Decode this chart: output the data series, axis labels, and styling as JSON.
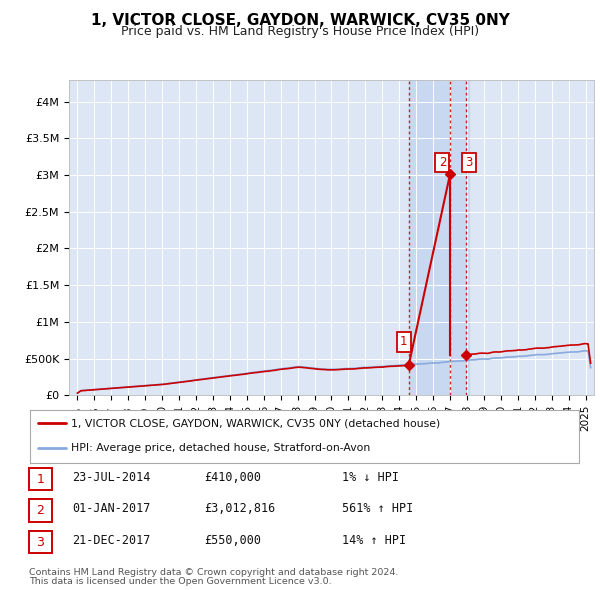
{
  "title": "1, VICTOR CLOSE, GAYDON, WARWICK, CV35 0NY",
  "subtitle": "Price paid vs. HM Land Registry's House Price Index (HPI)",
  "legend_line1": "1, VICTOR CLOSE, GAYDON, WARWICK, CV35 0NY (detached house)",
  "legend_line2": "HPI: Average price, detached house, Stratford-on-Avon",
  "footer1": "Contains HM Land Registry data © Crown copyright and database right 2024.",
  "footer2": "This data is licensed under the Open Government Licence v3.0.",
  "ylabel_ticks": [
    "£0",
    "£500K",
    "£1M",
    "£1.5M",
    "£2M",
    "£2.5M",
    "£3M",
    "£3.5M",
    "£4M"
  ],
  "ytick_vals": [
    0,
    500000,
    1000000,
    1500000,
    2000000,
    2500000,
    3000000,
    3500000,
    4000000
  ],
  "xlim": [
    1994.5,
    2025.5
  ],
  "ylim": [
    0,
    4300000
  ],
  "transactions": [
    {
      "num": 1,
      "date_label": "23-JUL-2014",
      "price_label": "£410,000",
      "pct_label": "1% ↓ HPI",
      "year": 2014.56,
      "price": 410000
    },
    {
      "num": 2,
      "date_label": "01-JAN-2017",
      "price_label": "£3,012,816",
      "pct_label": "561% ↑ HPI",
      "year": 2017.0,
      "price": 3012816
    },
    {
      "num": 3,
      "date_label": "21-DEC-2017",
      "price_label": "£550,000",
      "pct_label": "14% ↑ HPI",
      "year": 2017.97,
      "price": 550000
    }
  ],
  "property_color": "#cc0000",
  "hpi_color": "#88aadd",
  "vline_color": "#cc0000",
  "grid_color": "#ffffff",
  "box_color": "#cc0000",
  "plot_bg": "#dce6f5",
  "highlight_bg": "#c8d8f0"
}
